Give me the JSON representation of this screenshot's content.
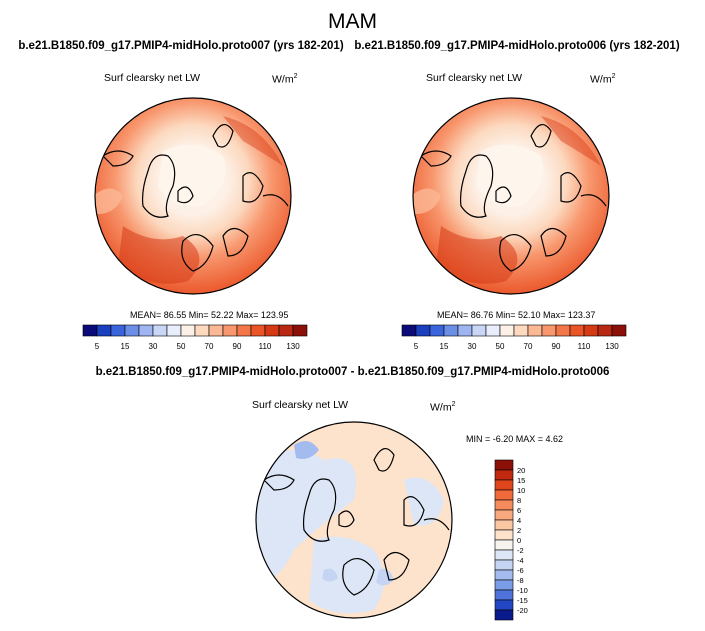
{
  "figure": {
    "season": "MAM",
    "diff_title": "b.e21.B1850.f09_g17.PMIP4-midHolo.proto007 - b.e21.B1850.f09_g17.PMIP4-midHolo.proto006"
  },
  "chart_data": [
    {
      "type": "heatmap",
      "projection": "north-polar-stereographic",
      "title": "b.e21.B1850.f09_g17.PMIP4-midHolo.proto007 (yrs 182-201)",
      "variable": "Surf clearsky net LW",
      "units": "W/m",
      "units_exp": "2",
      "stats_text": "MEAN=  86.55  Min=  52.22  Max= 123.95",
      "mean": 86.55,
      "min": 52.22,
      "max": 123.95,
      "colorbar_levels": [
        5,
        10,
        15,
        20,
        30,
        40,
        50,
        60,
        70,
        80,
        90,
        100,
        110,
        120,
        130
      ],
      "colorbar_labels": [
        "5",
        "15",
        "30",
        "50",
        "70",
        "90",
        "110",
        "130"
      ],
      "colorbar_colors": [
        "#0a0a78",
        "#1a3fbf",
        "#3a64dc",
        "#6b8fe6",
        "#9fb4f0",
        "#c9d6f5",
        "#e8eefc",
        "#fdf0e6",
        "#fcd9bf",
        "#fbb895",
        "#f8966d",
        "#f47547",
        "#ea5528",
        "#d63a15",
        "#b82812",
        "#8c1008"
      ]
    },
    {
      "type": "heatmap",
      "projection": "north-polar-stereographic",
      "title": "b.e21.B1850.f09_g17.PMIP4-midHolo.proto006 (yrs 182-201)",
      "variable": "Surf clearsky net LW",
      "units": "W/m",
      "units_exp": "2",
      "stats_text": "MEAN=  86.76  Min=  52.10  Max= 123.37",
      "mean": 86.76,
      "min": 52.1,
      "max": 123.37,
      "colorbar_levels": [
        5,
        10,
        15,
        20,
        30,
        40,
        50,
        60,
        70,
        80,
        90,
        100,
        110,
        120,
        130
      ],
      "colorbar_labels": [
        "5",
        "15",
        "30",
        "50",
        "70",
        "90",
        "110",
        "130"
      ],
      "colorbar_colors": [
        "#0a0a78",
        "#1a3fbf",
        "#3a64dc",
        "#6b8fe6",
        "#9fb4f0",
        "#c9d6f5",
        "#e8eefc",
        "#fdf0e6",
        "#fcd9bf",
        "#fbb895",
        "#f8966d",
        "#f47547",
        "#ea5528",
        "#d63a15",
        "#b82812",
        "#8c1008"
      ]
    },
    {
      "type": "heatmap",
      "projection": "north-polar-stereographic",
      "title": "b.e21.B1850.f09_g17.PMIP4-midHolo.proto007 - b.e21.B1850.f09_g17.PMIP4-midHolo.proto006",
      "variable": "Surf clearsky net LW",
      "units": "W/m",
      "units_exp": "2",
      "stats_text": "MIN =  -6.20  MAX =    4.62",
      "min": -6.2,
      "max": 4.62,
      "colorbar_levels": [
        -20,
        -15,
        -10,
        -8,
        -6,
        -4,
        -2,
        0,
        2,
        4,
        6,
        8,
        10,
        15,
        20
      ],
      "colorbar_labels": [
        "20",
        "15",
        "10",
        "8",
        "6",
        "4",
        "2",
        "0",
        "-2",
        "-4",
        "-6",
        "-8",
        "-10",
        "-15",
        "-20"
      ],
      "colorbar_colors": [
        "#8c1008",
        "#c0280f",
        "#e0461c",
        "#f06a3c",
        "#f58a5c",
        "#f8a97d",
        "#fbc6a2",
        "#fde2cc",
        "#f7f3ee",
        "#dde6f6",
        "#c4d4f2",
        "#a3bbee",
        "#7b9ce6",
        "#4f73da",
        "#2347c4",
        "#0a1a8c"
      ]
    }
  ]
}
